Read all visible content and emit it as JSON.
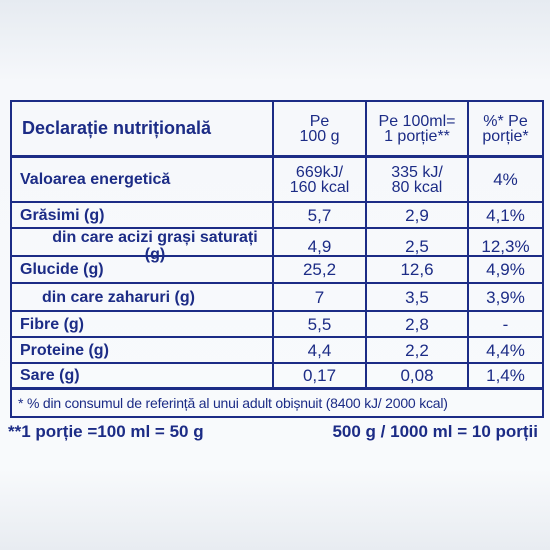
{
  "table": {
    "header": {
      "title": "Declarație nutrițională",
      "col_per_100g": [
        "Pe",
        "100 g"
      ],
      "col_per_100ml": [
        "Pe 100ml=",
        "1 porție**"
      ],
      "col_percent": [
        "%* Pe",
        "porție*"
      ]
    },
    "rows": [
      {
        "name": "Valoarea energetică",
        "per_100g": [
          "669kJ/",
          "160 kcal"
        ],
        "per_100ml": [
          "335 kJ/",
          "80 kcal"
        ],
        "percent": "4%"
      },
      {
        "name": "Grăsimi (g)",
        "per_100g": "5,7",
        "per_100ml": "2,9",
        "percent": "4,1%"
      },
      {
        "name": "din care acizi grași saturați (g)",
        "per_100g": "4,9",
        "per_100ml": "2,5",
        "percent": "12,3%"
      },
      {
        "name": "Glucide (g)",
        "per_100g": "25,2",
        "per_100ml": "12,6",
        "percent": "4,9%"
      },
      {
        "name": "din care zaharuri (g)",
        "per_100g": "7",
        "per_100ml": "3,5",
        "percent": "3,9%"
      },
      {
        "name": "Fibre (g)",
        "per_100g": "5,5",
        "per_100ml": "2,8",
        "percent": "-"
      },
      {
        "name": "Proteine (g)",
        "per_100g": "4,4",
        "per_100ml": "2,2",
        "percent": "4,4%"
      },
      {
        "name": "Sare (g)",
        "per_100g": "0,17",
        "per_100ml": "0,08",
        "percent": "1,4%"
      }
    ],
    "footnote": "* % din consumul de referință al unui adult obișnuit (8400 kJ/ 2000 kcal)"
  },
  "portions": {
    "left": "**1 porție =100 ml = 50 g",
    "right": "500 g / 1000 ml = 10 porții"
  }
}
